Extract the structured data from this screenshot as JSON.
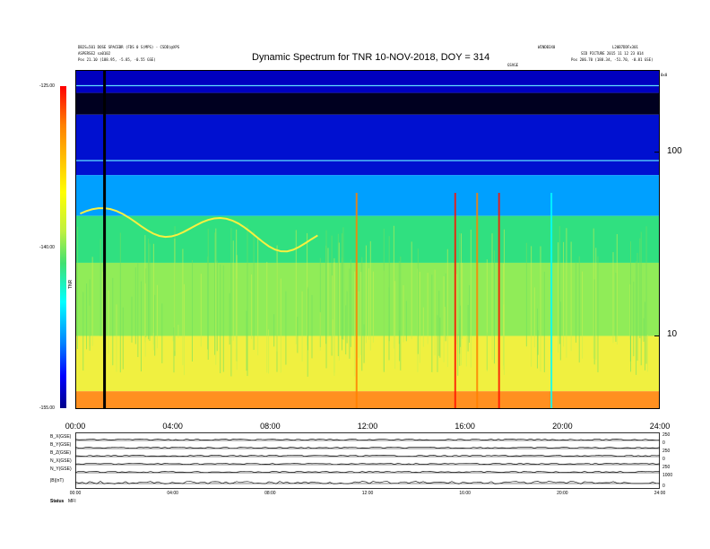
{
  "header": {
    "left_line1": "DB2S=501 DOSE SPACEBR (FDS 0 S(MPS) - CSDD)@XPS",
    "left_line2": "ASPERSE2 sa0102",
    "left_line3": "Pos   21.10 (188.95, -5.85, -0.55 GSE)",
    "right_line1": "WINDB3X0",
    "right_line2": "L20B7DDFx301",
    "right_line3": "SID PICTURE 2015 11 12 23 014",
    "right_line4": "Pos   206.70 (188.34, -51.70, -0.81 GSE)",
    "mid_tag": "GSVGE",
    "corner_tag": "0x0"
  },
  "title": "Dynamic Spectrum for TNR 10-NOV-2018, DOY = 314",
  "colorbar": {
    "max_label": "-125.00",
    "mid_label": "-140.00",
    "min_label": "-155.00",
    "side_label": "TNR"
  },
  "chart_data": {
    "type": "heatmap",
    "title": "Dynamic Spectrum for TNR 10-NOV-2018, DOY = 314",
    "x_tick_labels": [
      "00:00",
      "04:00",
      "08:00",
      "12:00",
      "16:00",
      "20:00",
      "24:00"
    ],
    "x_range_hours": [
      0,
      24
    ],
    "y_scale": "log",
    "y_tick_labels": [
      "100",
      "10"
    ],
    "y_tick_values": [
      100,
      10
    ],
    "y_range": [
      4,
      280
    ],
    "color_range": [
      -155,
      -125
    ],
    "colorscale": [
      "#00008b",
      "#0000ff",
      "#00c8ff",
      "#00ffff",
      "#40e070",
      "#c0f040",
      "#ffff30",
      "#ff8000",
      "#ff0000"
    ],
    "bands": [
      {
        "from": 210,
        "to": 280,
        "color": "#0000c0"
      },
      {
        "from": 160,
        "to": 210,
        "color": "#000020"
      },
      {
        "from": 75,
        "to": 160,
        "color": "#0010d0"
      },
      {
        "from": 45,
        "to": 75,
        "color": "#00a0ff"
      },
      {
        "from": 25,
        "to": 45,
        "color": "#30e080"
      },
      {
        "from": 10,
        "to": 25,
        "color": "#90ec58"
      },
      {
        "from": 5,
        "to": 10,
        "color": "#f0f040"
      },
      {
        "from": 4,
        "to": 5,
        "color": "#ff9020"
      }
    ],
    "marker_hour": 1.2,
    "bursts": [
      {
        "hour": 11.55,
        "color": "#ff8000"
      },
      {
        "hour": 15.6,
        "color": "#ff1000"
      },
      {
        "hour": 16.5,
        "color": "#ff8000"
      },
      {
        "hour": 17.4,
        "color": "#ff1000"
      },
      {
        "hour": 19.55,
        "color": "#00ffff"
      }
    ]
  },
  "lower_panel": {
    "row_labels": [
      "B_X(GSE)",
      "B_Y(GSE)",
      "B_Z(GSE)",
      "N_X(GSE)",
      "N_Y(GSE)",
      "|B|(nT)"
    ],
    "right_labels": [
      "250",
      "0",
      "250",
      "0",
      "250",
      "1000",
      "0"
    ],
    "x_tick_labels": [
      "00:00",
      "04:00",
      "08:00",
      "12:00",
      "16:00",
      "20:00",
      "24:00"
    ],
    "footer_labels": [
      "Status",
      "MFI"
    ]
  }
}
